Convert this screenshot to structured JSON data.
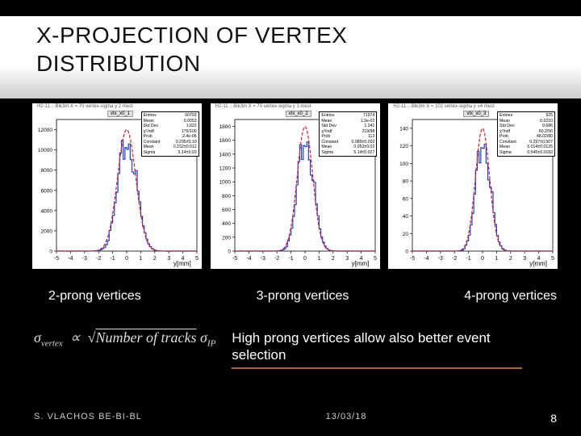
{
  "title_line1": "X-PROJECTION OF VERTEX",
  "title_line2": "DISTRIBUTION",
  "charts": [
    {
      "caption": "2-prong vertices",
      "hist_name": "vtx_x0_1",
      "top_label": "H2-11 :: Blk3m X = 70  vertex-sigma y  2  mest",
      "stats": {
        "Entries": "60793",
        "Mean": "0.0053",
        "Std Dev": "1.022",
        "χ²/ndf": "176/100",
        "Prob": "2.4e-06",
        "Constant": "0.295±0.10",
        "Mean ": "0.152±0.012",
        "Sigma": "5.14±0.03"
      },
      "xlabel": "y[mm]",
      "xlim": [
        -5,
        5
      ],
      "xtick_step": 1,
      "ylim": [
        0,
        13000
      ],
      "ytick_step": 2000,
      "background_color": "#ffffff",
      "grid_color": "#dddddd",
      "hist_color": "#1f3fbf",
      "fit_color": "#d81e1e",
      "hist_linewidth": 1.2,
      "fit_linewidth": 1.2,
      "fit_dash": "4 2",
      "mu": 0.0,
      "sigma": 0.65,
      "peak": 12000
    },
    {
      "caption": "3-prong vertices",
      "hist_name": "vtx_x0_2",
      "top_label": "H2-11 :: Blk3m X = 70  vertex-sigma y  3  mest",
      "stats": {
        "Entries": "71974",
        "Mean": "1.3e-02",
        "Std Dev": "1.241",
        "χ²/ndf": "219/98",
        "Prob": "113",
        "Constant": "0.089±0.002",
        "Mean ": "0.052±0.02",
        "Sigma": "5.14±0.027"
      },
      "xlabel": "y[mm]",
      "xlim": [
        -5,
        5
      ],
      "xtick_step": 1,
      "ylim": [
        0,
        1900
      ],
      "ytick_step": 200,
      "background_color": "#ffffff",
      "grid_color": "#dddddd",
      "hist_color": "#1f3fbf",
      "fit_color": "#d81e1e",
      "hist_linewidth": 1.2,
      "fit_linewidth": 1.2,
      "fit_dash": "4 2",
      "mu": 0.0,
      "sigma": 0.55,
      "peak": 1800
    },
    {
      "caption": "4-prong vertices",
      "hist_name": "vtx_x0_3",
      "top_label": "H2-11 :: Blk3m X = 102  vertex-sigma y  ≥4  mest",
      "stats": {
        "Entries": "925",
        "Mean": "0.0210",
        "Std Dev": "0.686",
        "χ²/ndf": "60.2/56",
        "Prob": "48.02/80",
        "Constant": "0.297±0.507",
        "Mean ": "0.014±0.0125",
        "Sigma": "0.545±0.0182"
      },
      "xlabel": "y[mm]",
      "xlim": [
        -5,
        5
      ],
      "xtick_step": 1,
      "ylim": [
        0,
        150
      ],
      "ytick_step": 20,
      "background_color": "#ffffff",
      "grid_color": "#dddddd",
      "hist_color": "#1f3fbf",
      "fit_color": "#d81e1e",
      "hist_linewidth": 1.2,
      "fit_linewidth": 1.2,
      "fit_dash": "4 2",
      "mu": 0.0,
      "sigma": 0.5,
      "peak": 140
    }
  ],
  "formula": {
    "lhs": "σ",
    "lhs_sub": "vertex",
    "prop": "∝",
    "sqrt_text": "Number of tracks",
    "rhs": "σ",
    "rhs_sub": "IP"
  },
  "note_text": "High prong vertices allow also better event selection",
  "footer": {
    "author": "S. VLACHOS   BE-BI-BL",
    "date": "13/03/18",
    "page": "8"
  },
  "colors": {
    "bg": "#000000",
    "text": "#ffffff",
    "rule": "#a86a2a"
  }
}
